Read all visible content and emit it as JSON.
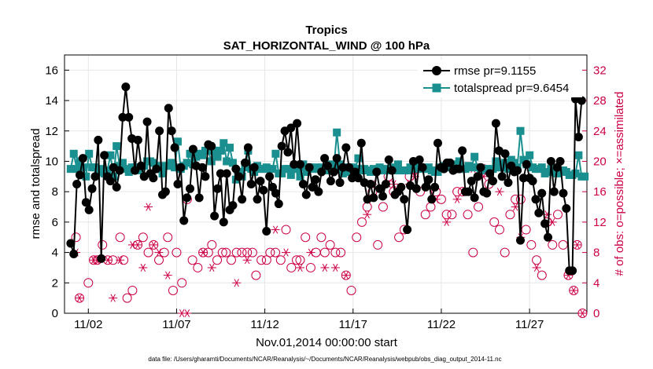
{
  "chart_data": {
    "type": "line",
    "title": "Tropics",
    "subtitle": "SAT_HORIZONTAL_WIND @ 100 hPa",
    "xlabel": "Nov.01,2014 00:00:00 start",
    "ylabel": "rmse and totalspread",
    "y2label": "# of obs: o=possible; ×=assimilated",
    "footer": "data file: /Users/gharamti/Documents/NCAR/Reanalysis/~/Documents/NCAR/Reanalysis/webpub/obs_diag_output_2014-11.nc",
    "xlim": [
      0.65,
      30.25
    ],
    "ylim": [
      0,
      17
    ],
    "y2lim": [
      0,
      34
    ],
    "xticks": [
      {
        "x": 2,
        "label": "11/02"
      },
      {
        "x": 7,
        "label": "11/07"
      },
      {
        "x": 12,
        "label": "11/12"
      },
      {
        "x": 17,
        "label": "11/17"
      },
      {
        "x": 22,
        "label": "11/22"
      },
      {
        "x": 27,
        "label": "11/27"
      }
    ],
    "yticks": [
      0,
      2,
      4,
      6,
      8,
      10,
      12,
      14,
      16
    ],
    "y2ticks": [
      0,
      4,
      8,
      12,
      16,
      20,
      24,
      28,
      32
    ],
    "grid": true,
    "legend_position": "top-right",
    "series": [
      {
        "name": "rmse pr=9.1155",
        "color": "#000000",
        "values": [
          4.6,
          3.9,
          8.5,
          9.1,
          10.2,
          7.3,
          6.8,
          8.2,
          9.0,
          11.4,
          3.6,
          10.4,
          9.0,
          8.7,
          9.6,
          8.3,
          9.4,
          12.9,
          14.9,
          12.9,
          11.5,
          9.4,
          11.4,
          9.7,
          9.0,
          12.6,
          9.2,
          8.9,
          9.5,
          12.0,
          7.8,
          8.0,
          13.5,
          12.0,
          10.9,
          8.5,
          9.6,
          6.1,
          7.6,
          8.2,
          10.8,
          9.7,
          7.6,
          9.6,
          9.0,
          11.1,
          11.0,
          6.4,
          8.2,
          9.2,
          6.0,
          9.2,
          6.8,
          7.1,
          9.5,
          9.0,
          7.5,
          9.9,
          10.9,
          8.5,
          9.6,
          7.5,
          8.7,
          8.1,
          5.4,
          9.0,
          8.3,
          7.9,
          7.2,
          11.0,
          12.0,
          10.6,
          12.2,
          9.8,
          12.5,
          9.8,
          8.5,
          7.8,
          9.6,
          8.3,
          8.8,
          8.0,
          9.3,
          10.2,
          9.7,
          8.7,
          9.3,
          10.2,
          8.6,
          9.6,
          10.9,
          9.6,
          8.9,
          9.3,
          8.9,
          11.2,
          8.6,
          7.5,
          8.5,
          7.6,
          9.3,
          8.2,
          7.7,
          8.5,
          10.1,
          9.4,
          7.8,
          8.0,
          8.3,
          7.5,
          5.5,
          8.4,
          10.0,
          8.2,
          10.1,
          9.6,
          8.3,
          8.8,
          7.5,
          8.3,
          11.2,
          9.6,
          9.5,
          9.9,
          9.9,
          9.4,
          9.5,
          9.5,
          10.7,
          8.0,
          8.0,
          8.7,
          7.6,
          9.0,
          9.6,
          8.0,
          7.9,
          9.2,
          8.7,
          12.5,
          10.7,
          9.0,
          10.5,
          8.6,
          9.7,
          9.3,
          9.4,
          4.8,
          8.9,
          9.8,
          8.9,
          8.7,
          7.5,
          6.6,
          7.9,
          5.9,
          5.0,
          10.0,
          8.0,
          9.6,
          10.0,
          7.9,
          6.9,
          2.8,
          2.8,
          14.1,
          11.6,
          14.0
        ]
      },
      {
        "name": "totalspread pr=9.6454",
        "color": "#1a8f8f",
        "values": [
          9.5,
          10.5,
          9.5,
          10.0,
          9.6,
          9.0,
          10.5,
          9.6,
          9.6,
          9.3,
          9.5,
          9.2,
          9.4,
          10.4,
          9.0,
          11.0,
          9.7,
          9.9,
          9.5,
          9.3,
          9.6,
          9.6,
          9.4,
          9.6,
          9.7,
          10.0,
          10.0,
          9.9,
          9.7,
          9.5,
          9.2,
          9.7,
          9.7,
          9.9,
          9.6,
          11.3,
          9.5,
          9.7,
          9.9,
          10.5,
          9.8,
          10.3,
          10.5,
          10.4,
          10.7,
          10.7,
          10.0,
          10.7,
          10.3,
          10.7,
          11.2,
          10.0,
          10.9,
          9.9,
          8.8,
          9.3,
          9.0,
          9.6,
          10.7,
          9.5,
          9.3,
          9.7,
          9.5,
          9.5,
          9.6,
          9.5,
          9.5,
          10.5,
          9.2,
          9.2,
          9.5,
          9.5,
          9.1,
          9.5,
          9.5,
          9.0,
          9.8,
          9.3,
          9.6,
          9.5,
          9.6,
          9.5,
          9.6,
          9.5,
          9.4,
          9.8,
          9.5,
          11.9,
          9.8,
          9.2,
          9.3,
          9.6,
          9.6,
          9.5,
          10.2,
          9.4,
          9.5,
          9.4,
          9.3,
          9.5,
          9.4,
          9.6,
          9.4,
          9.5,
          9.4,
          9.6,
          9.4,
          9.8,
          9.4,
          9.4,
          9.4,
          9.6,
          9.5,
          9.6,
          9.6,
          9.5,
          9.5,
          9.6,
          9.4,
          9.3,
          9.3,
          9.6,
          9.7,
          9.7,
          9.6,
          9.6,
          9.8,
          10.0,
          9.5,
          9.5,
          9.7,
          9.6,
          10.3,
          9.6,
          9.4,
          9.5,
          9.5,
          9.4,
          9.5,
          10.0,
          9.6,
          9.6,
          9.9,
          9.5,
          10.1,
          9.9,
          9.6,
          12.0,
          10.1,
          9.8,
          10.4,
          9.6,
          9.5,
          9.5,
          9.6,
          9.2,
          9.3,
          9.5,
          9.3,
          9.2,
          9.4,
          9.4,
          9.3,
          9.1,
          9.1,
          9.2,
          10.4,
          9.0,
          9.0
        ]
      }
    ],
    "obs_possible": [
      {
        "x": 1.3,
        "y": 10
      },
      {
        "x": 1.5,
        "y": 2
      },
      {
        "x": 2.0,
        "y": 4
      },
      {
        "x": 2.3,
        "y": 7
      },
      {
        "x": 2.5,
        "y": 7
      },
      {
        "x": 2.8,
        "y": 9
      },
      {
        "x": 3.1,
        "y": 7
      },
      {
        "x": 3.4,
        "y": 7
      },
      {
        "x": 3.8,
        "y": 10
      },
      {
        "x": 4.0,
        "y": 7
      },
      {
        "x": 4.2,
        "y": 2
      },
      {
        "x": 4.5,
        "y": 3
      },
      {
        "x": 4.8,
        "y": 9
      },
      {
        "x": 5.1,
        "y": 10
      },
      {
        "x": 5.4,
        "y": 8
      },
      {
        "x": 5.7,
        "y": 9
      },
      {
        "x": 6.0,
        "y": 7
      },
      {
        "x": 6.3,
        "y": 8
      },
      {
        "x": 6.5,
        "y": 10
      },
      {
        "x": 6.8,
        "y": 3
      },
      {
        "x": 7.0,
        "y": 8
      },
      {
        "x": 7.3,
        "y": 4
      },
      {
        "x": 7.6,
        "y": 15
      },
      {
        "x": 7.9,
        "y": 7
      },
      {
        "x": 8.2,
        "y": 6
      },
      {
        "x": 8.5,
        "y": 8
      },
      {
        "x": 8.8,
        "y": 8
      },
      {
        "x": 9.0,
        "y": 9
      },
      {
        "x": 9.3,
        "y": 7
      },
      {
        "x": 9.6,
        "y": 8
      },
      {
        "x": 9.8,
        "y": 8
      },
      {
        "x": 10.1,
        "y": 7
      },
      {
        "x": 10.4,
        "y": 8
      },
      {
        "x": 10.7,
        "y": 8
      },
      {
        "x": 11.0,
        "y": 8
      },
      {
        "x": 11.3,
        "y": 8
      },
      {
        "x": 11.5,
        "y": 5
      },
      {
        "x": 11.8,
        "y": 7
      },
      {
        "x": 12.1,
        "y": 7
      },
      {
        "x": 12.3,
        "y": 8
      },
      {
        "x": 12.6,
        "y": 8
      },
      {
        "x": 12.9,
        "y": 7
      },
      {
        "x": 13.2,
        "y": 11
      },
      {
        "x": 13.5,
        "y": 6
      },
      {
        "x": 13.8,
        "y": 7
      },
      {
        "x": 14.0,
        "y": 7
      },
      {
        "x": 14.3,
        "y": 10
      },
      {
        "x": 14.6,
        "y": 6
      },
      {
        "x": 14.9,
        "y": 8
      },
      {
        "x": 15.2,
        "y": 10
      },
      {
        "x": 15.4,
        "y": 8
      },
      {
        "x": 15.7,
        "y": 9
      },
      {
        "x": 16.0,
        "y": 8
      },
      {
        "x": 16.3,
        "y": 8
      },
      {
        "x": 16.6,
        "y": 5
      },
      {
        "x": 16.9,
        "y": 3
      },
      {
        "x": 17.2,
        "y": 10
      },
      {
        "x": 17.5,
        "y": 12
      },
      {
        "x": 17.8,
        "y": 14
      },
      {
        "x": 18.1,
        "y": 16
      },
      {
        "x": 18.4,
        "y": 9
      },
      {
        "x": 18.7,
        "y": 14
      },
      {
        "x": 19.0,
        "y": 18
      },
      {
        "x": 19.3,
        "y": 16
      },
      {
        "x": 19.6,
        "y": 10
      },
      {
        "x": 19.9,
        "y": 11
      },
      {
        "x": 20.2,
        "y": 18
      },
      {
        "x": 20.5,
        "y": 19
      },
      {
        "x": 20.8,
        "y": 16
      },
      {
        "x": 21.1,
        "y": 13
      },
      {
        "x": 21.4,
        "y": 14
      },
      {
        "x": 21.7,
        "y": 16
      },
      {
        "x": 22.0,
        "y": 15
      },
      {
        "x": 22.3,
        "y": 13
      },
      {
        "x": 22.6,
        "y": 13
      },
      {
        "x": 22.9,
        "y": 16
      },
      {
        "x": 23.2,
        "y": 16
      },
      {
        "x": 23.5,
        "y": 13
      },
      {
        "x": 23.8,
        "y": 8
      },
      {
        "x": 24.1,
        "y": 14
      },
      {
        "x": 24.4,
        "y": 19
      },
      {
        "x": 24.7,
        "y": 17
      },
      {
        "x": 25.0,
        "y": 12
      },
      {
        "x": 25.3,
        "y": 11
      },
      {
        "x": 25.6,
        "y": 8
      },
      {
        "x": 25.9,
        "y": 13
      },
      {
        "x": 26.2,
        "y": 15
      },
      {
        "x": 26.5,
        "y": 15
      },
      {
        "x": 26.8,
        "y": 11
      },
      {
        "x": 27.1,
        "y": 9
      },
      {
        "x": 27.4,
        "y": 7
      },
      {
        "x": 27.7,
        "y": 5
      },
      {
        "x": 28.0,
        "y": 12
      },
      {
        "x": 28.3,
        "y": 9
      },
      {
        "x": 28.6,
        "y": 13
      },
      {
        "x": 28.9,
        "y": 9
      },
      {
        "x": 29.2,
        "y": 5
      },
      {
        "x": 29.5,
        "y": 3
      },
      {
        "x": 29.7,
        "y": 9
      },
      {
        "x": 30.0,
        "y": 0
      }
    ],
    "obs_assimilated": [
      {
        "x": 1.3,
        "y": 8
      },
      {
        "x": 1.5,
        "y": 2
      },
      {
        "x": 2.3,
        "y": 7
      },
      {
        "x": 2.5,
        "y": 7
      },
      {
        "x": 3.1,
        "y": 7
      },
      {
        "x": 3.4,
        "y": 2
      },
      {
        "x": 3.8,
        "y": 7
      },
      {
        "x": 4.5,
        "y": 9
      },
      {
        "x": 4.8,
        "y": 9
      },
      {
        "x": 5.1,
        "y": 6
      },
      {
        "x": 5.4,
        "y": 14
      },
      {
        "x": 5.7,
        "y": 9
      },
      {
        "x": 6.0,
        "y": 8
      },
      {
        "x": 6.5,
        "y": 5
      },
      {
        "x": 7.3,
        "y": 0
      },
      {
        "x": 7.6,
        "y": 0
      },
      {
        "x": 8.5,
        "y": 8
      },
      {
        "x": 9.0,
        "y": 6
      },
      {
        "x": 10.4,
        "y": 4
      },
      {
        "x": 11.0,
        "y": 7
      },
      {
        "x": 12.6,
        "y": 11
      },
      {
        "x": 13.2,
        "y": 8
      },
      {
        "x": 14.0,
        "y": 6
      },
      {
        "x": 14.6,
        "y": 8
      },
      {
        "x": 15.4,
        "y": 6
      },
      {
        "x": 16.0,
        "y": 6
      },
      {
        "x": 16.6,
        "y": 5
      },
      {
        "x": 17.8,
        "y": 13
      },
      {
        "x": 18.1,
        "y": 17
      },
      {
        "x": 19.0,
        "y": 17
      },
      {
        "x": 19.3,
        "y": 17
      },
      {
        "x": 20.2,
        "y": 17
      },
      {
        "x": 20.5,
        "y": 18
      },
      {
        "x": 21.7,
        "y": 15
      },
      {
        "x": 22.3,
        "y": 12
      },
      {
        "x": 22.9,
        "y": 15
      },
      {
        "x": 23.8,
        "y": 19
      },
      {
        "x": 24.1,
        "y": 18
      },
      {
        "x": 24.4,
        "y": 18
      },
      {
        "x": 25.3,
        "y": 16
      },
      {
        "x": 26.2,
        "y": 14
      },
      {
        "x": 26.5,
        "y": 10
      },
      {
        "x": 27.4,
        "y": 6
      },
      {
        "x": 28.0,
        "y": 13
      },
      {
        "x": 28.3,
        "y": 12
      },
      {
        "x": 29.2,
        "y": 5
      },
      {
        "x": 29.5,
        "y": 3
      },
      {
        "x": 29.7,
        "y": 9
      },
      {
        "x": 30.0,
        "y": 0
      }
    ]
  }
}
